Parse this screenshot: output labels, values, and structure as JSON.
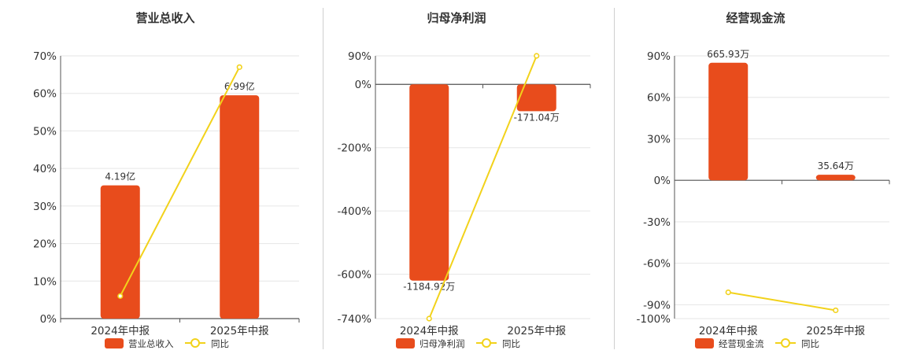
{
  "colors": {
    "bar": "#e84c1c",
    "line": "#f2d21b",
    "grid": "#e6e6e6",
    "axis": "#555555",
    "text": "#333333"
  },
  "chart_data": [
    {
      "type": "bar",
      "title": "营业总收入",
      "categories": [
        "2024年中报",
        "2025年中报"
      ],
      "bar_series": {
        "name": "营业总收入",
        "values": [
          0.355,
          0.595
        ],
        "labels": [
          "4.19亿",
          "6.99亿"
        ]
      },
      "line_series": {
        "name": "同比",
        "values": [
          0.06,
          0.67
        ]
      },
      "y_ticks": [
        0,
        0.1,
        0.2,
        0.3,
        0.4,
        0.5,
        0.6,
        0.7
      ],
      "y_tick_labels": [
        "0%",
        "10%",
        "20%",
        "30%",
        "40%",
        "50%",
        "60%",
        "70%"
      ],
      "ylim": [
        0,
        0.7
      ],
      "grid": true,
      "legend": "bottom"
    },
    {
      "type": "bar",
      "title": "归母净利润",
      "categories": [
        "2024年中报",
        "2025年中报"
      ],
      "bar_series": {
        "name": "归母净利润",
        "values": [
          -6.2,
          -0.85
        ],
        "labels": [
          "-1184.92万",
          "-171.04万"
        ]
      },
      "line_series": {
        "name": "同比",
        "values": [
          -7.4,
          0.9
        ]
      },
      "y_ticks": [
        0.9,
        0,
        -2,
        -4,
        -6,
        -7.4
      ],
      "y_tick_labels": [
        "90%",
        "0%",
        "-200%",
        "-400%",
        "-600%",
        "-740%"
      ],
      "ylim": [
        -7.4,
        0.9
      ],
      "grid": true,
      "legend": "bottom"
    },
    {
      "type": "bar",
      "title": "经营现金流",
      "categories": [
        "2024年中报",
        "2025年中报"
      ],
      "bar_series": {
        "name": "经营现金流",
        "values": [
          0.85,
          0.04
        ],
        "labels": [
          "665.93万",
          "35.64万"
        ]
      },
      "line_series": {
        "name": "同比",
        "values": [
          -0.81,
          -0.94
        ]
      },
      "y_ticks": [
        0.9,
        0.6,
        0.3,
        0,
        -0.3,
        -0.6,
        -0.9,
        -1.0
      ],
      "y_tick_labels": [
        "90%",
        "60%",
        "30%",
        "0%",
        "-30%",
        "-60%",
        "-90%",
        "-100%"
      ],
      "ylim": [
        -1.0,
        0.9
      ],
      "grid": true,
      "legend": "bottom"
    }
  ]
}
